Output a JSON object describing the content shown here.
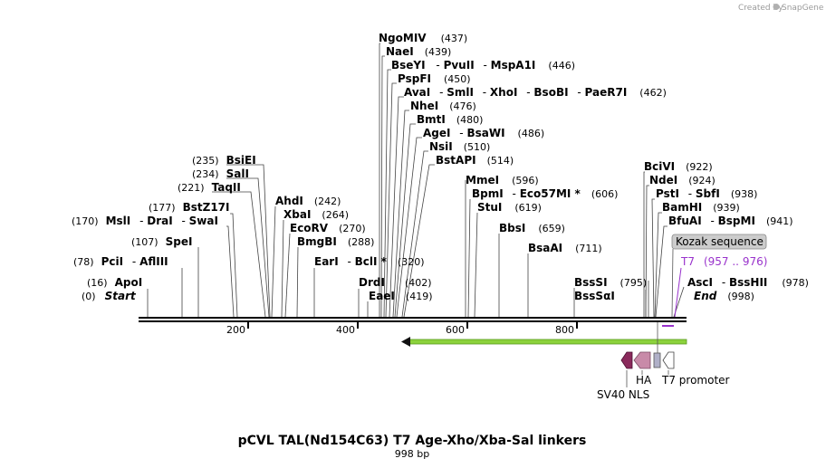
{
  "credit": {
    "prefix": "Created by",
    "brand": "SnapGene"
  },
  "title": "pCVL TAL(Nd154C63) T7 Age-Xho/Xba-Sal linkers",
  "length_label": "998 bp",
  "ruler": {
    "ticks": [
      "200",
      "400",
      "600",
      "800"
    ]
  },
  "labels": {
    "start": "Start",
    "end": "End",
    "start_pos": "(0)",
    "end_pos": "(998)"
  },
  "sites": [
    {
      "names": [
        "NgoMIV"
      ],
      "pos": "(437)"
    },
    {
      "names": [
        "NaeI"
      ],
      "pos": "(439)"
    },
    {
      "names": [
        "BseYI",
        "PvuII",
        "MspA1I"
      ],
      "pos": "(446)"
    },
    {
      "names": [
        "PspFI"
      ],
      "pos": "(450)"
    },
    {
      "names": [
        "AvaI",
        "SmlI",
        "XhoI",
        "BsoBI",
        "PaeR7I"
      ],
      "pos": "(462)"
    },
    {
      "names": [
        "NheI"
      ],
      "pos": "(476)"
    },
    {
      "names": [
        "BmtI"
      ],
      "pos": "(480)"
    },
    {
      "names": [
        "AgeI",
        "BsaWI"
      ],
      "pos": "(486)"
    },
    {
      "names": [
        "NsiI"
      ],
      "pos": "(510)"
    },
    {
      "names": [
        "BstAPI"
      ],
      "pos": "(514)"
    },
    {
      "names": [
        "BsiEI"
      ],
      "pos": "(235)"
    },
    {
      "names": [
        "SalI"
      ],
      "pos": "(234)"
    },
    {
      "names": [
        "TaqII"
      ],
      "pos": "(221)"
    },
    {
      "names": [
        "BstZ17I"
      ],
      "pos": "(177)"
    },
    {
      "names": [
        "MslI",
        "DraI",
        "SwaI"
      ],
      "pos": "(170)"
    },
    {
      "names": [
        "SpeI"
      ],
      "pos": "(107)"
    },
    {
      "names": [
        "PciI",
        "AflIII"
      ],
      "pos": "(78)"
    },
    {
      "names": [
        "ApoI"
      ],
      "pos": "(16)"
    },
    {
      "names": [
        "AhdI"
      ],
      "pos": "(242)"
    },
    {
      "names": [
        "XbaI"
      ],
      "pos": "(264)"
    },
    {
      "names": [
        "EcoRV"
      ],
      "pos": "(270)"
    },
    {
      "names": [
        "BmgBI"
      ],
      "pos": "(288)"
    },
    {
      "names": [
        "EarI",
        "BclI *"
      ],
      "pos": "(320)"
    },
    {
      "names": [
        "DrdI"
      ],
      "pos": "(402)"
    },
    {
      "names": [
        "EaeI"
      ],
      "pos": "(419)"
    },
    {
      "names": [
        "MmeI"
      ],
      "pos": "(596)"
    },
    {
      "names": [
        "BpmI",
        "Eco57MI *"
      ],
      "pos": "(606)"
    },
    {
      "names": [
        "StuI"
      ],
      "pos": "(619)"
    },
    {
      "names": [
        "BbsI"
      ],
      "pos": "(659)"
    },
    {
      "names": [
        "BsaAI"
      ],
      "pos": "(711)"
    },
    {
      "names": [
        "BssSI"
      ],
      "pos": "(795)"
    },
    {
      "names": [
        "BssSαI"
      ],
      "pos": ""
    },
    {
      "names": [
        "BciVI"
      ],
      "pos": "(922)"
    },
    {
      "names": [
        "NdeI"
      ],
      "pos": "(924)"
    },
    {
      "names": [
        "PstI",
        "SbfI"
      ],
      "pos": "(938)"
    },
    {
      "names": [
        "BamHI"
      ],
      "pos": "(939)"
    },
    {
      "names": [
        "BfuAI",
        "BspMI"
      ],
      "pos": "(941)"
    },
    {
      "names": [
        "AscI",
        "BssHII"
      ],
      "pos": "(978)"
    }
  ],
  "features": {
    "kozak": "Kozak sequence",
    "primer_name": "T7",
    "primer_range": "(957 .. 976)",
    "ha": "HA",
    "sv40": "SV40 NLS",
    "t7_promoter": "T7 promoter"
  },
  "colors": {
    "primer": "#9933cc",
    "arrow": "#8cd23c",
    "sv40": "#8a2a5c",
    "ha": "#c88aa8",
    "kozak_bg": "#cccccc"
  }
}
